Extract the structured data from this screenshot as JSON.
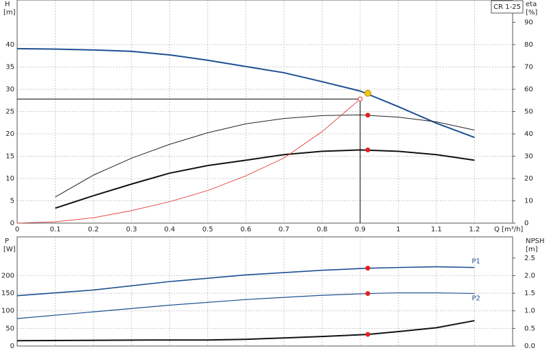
{
  "chart_data": [
    {
      "type": "line",
      "label": "CR 1-25",
      "ylabel": "H",
      "yunit": "[m]",
      "y2label": "eta",
      "y2unit": "[%]",
      "xlabel": "Q [m³/h]",
      "xlim": [
        0,
        1.3
      ],
      "xticks": [
        0,
        0.1,
        0.2,
        0.3,
        0.4,
        0.5,
        0.6,
        0.7,
        0.8,
        0.9,
        1,
        1.1,
        1.2
      ],
      "ylim": [
        0,
        50
      ],
      "yticks": [
        0,
        5,
        10,
        15,
        20,
        25,
        30,
        35,
        40
      ],
      "y2lim": [
        0,
        100
      ],
      "y2ticks": [
        0,
        10,
        20,
        30,
        40,
        50,
        60,
        70,
        80,
        90
      ],
      "grid": true,
      "series": [
        {
          "color": "#1c4f91",
          "width": 2,
          "x": [
            0,
            0.1,
            0.2,
            0.3,
            0.4,
            0.5,
            0.6,
            0.7,
            0.8,
            0.9,
            1,
            1.1,
            1.2
          ],
          "values": [
            39.1,
            39.0,
            38.8,
            38.5,
            37.7,
            36.5,
            35.1,
            33.7,
            31.7,
            29.6,
            26.1,
            22.4,
            19.2
          ],
          "marker": {
            "x": 0.92,
            "y": 29.1,
            "color": "#f5c518"
          }
        },
        {
          "color": "#222222",
          "width": 1,
          "axis": "y2",
          "x": [
            0.1,
            0.2,
            0.3,
            0.4,
            0.5,
            0.6,
            0.7,
            0.8,
            0.9,
            1,
            1.1,
            1.2
          ],
          "values": [
            11.7,
            21.5,
            29.1,
            35.3,
            40.5,
            44.5,
            46.9,
            48.2,
            48.5,
            47.5,
            45.4,
            41.7
          ],
          "marker": {
            "x": 0.92,
            "y": 48.4,
            "color": "#e02020"
          }
        },
        {
          "color": "#111111",
          "width": 2,
          "axis": "y2",
          "x": [
            0.1,
            0.2,
            0.3,
            0.4,
            0.5,
            0.6,
            0.7,
            0.8,
            0.9,
            1,
            1.1,
            1.2
          ],
          "values": [
            6.7,
            12.3,
            17.5,
            22.4,
            25.8,
            28.2,
            30.7,
            32.2,
            32.8,
            32.2,
            30.7,
            28.2
          ],
          "marker": {
            "x": 0.92,
            "y": 32.8,
            "color": "#e02020"
          }
        },
        {
          "color": "#e03030",
          "width": 0.8,
          "x": [
            0,
            0.1,
            0.2,
            0.3,
            0.4,
            0.5,
            0.6,
            0.7,
            0.8,
            0.9
          ],
          "values": [
            0,
            0.3,
            1.2,
            2.8,
            4.8,
            7.3,
            10.6,
            14.6,
            20.5,
            27.8
          ]
        }
      ],
      "duty_point": {
        "x": 0.9,
        "y": 27.8
      }
    },
    {
      "type": "line",
      "ylabel": "P",
      "yunit": "[W]",
      "y2label": "NPSH",
      "y2unit": "[m]",
      "xlim": [
        0,
        1.3
      ],
      "xticks": [
        0,
        0.1,
        0.2,
        0.3,
        0.4,
        0.5,
        0.6,
        0.7,
        0.8,
        0.9,
        1,
        1.1,
        1.2
      ],
      "ylim": [
        0,
        310
      ],
      "yticks": [
        0,
        50,
        100,
        150,
        200
      ],
      "y2lim": [
        0,
        3.1
      ],
      "y2ticks": [
        {
          "value": 0,
          "label": "0.0"
        },
        0.5,
        {
          "value": 1,
          "label": "1.0"
        },
        1.5,
        {
          "value": 2,
          "label": "2.0"
        },
        2.5
      ],
      "grid": true,
      "series": [
        {
          "name": "P1",
          "color": "#1c4f91",
          "width": 1.6,
          "x": [
            0,
            0.2,
            0.4,
            0.6,
            0.8,
            0.92,
            1,
            1.1,
            1.2
          ],
          "values": [
            143,
            159,
            183,
            202,
            215,
            221,
            223,
            225,
            223
          ],
          "marker": {
            "x": 0.92,
            "y": 221,
            "color": "#e02020"
          }
        },
        {
          "name": "P2",
          "color": "#1c4f91",
          "width": 1.2,
          "x": [
            0,
            0.2,
            0.4,
            0.6,
            0.8,
            0.92,
            1,
            1.1,
            1.2
          ],
          "values": [
            78,
            97,
            116,
            132,
            144,
            149,
            151,
            151,
            149
          ],
          "marker": {
            "x": 0.92,
            "y": 149,
            "color": "#e02020"
          }
        },
        {
          "color": "#111111",
          "width": 2,
          "axis": "y2",
          "x": [
            0,
            0.35,
            0.5,
            0.6,
            0.7,
            0.8,
            0.92,
            1,
            1.1,
            1.2
          ],
          "values": [
            0.15,
            0.17,
            0.17,
            0.19,
            0.23,
            0.27,
            0.33,
            0.41,
            0.52,
            0.72
          ],
          "marker": {
            "x": 0.92,
            "y": 0.33,
            "color": "#e02020"
          }
        }
      ]
    }
  ]
}
